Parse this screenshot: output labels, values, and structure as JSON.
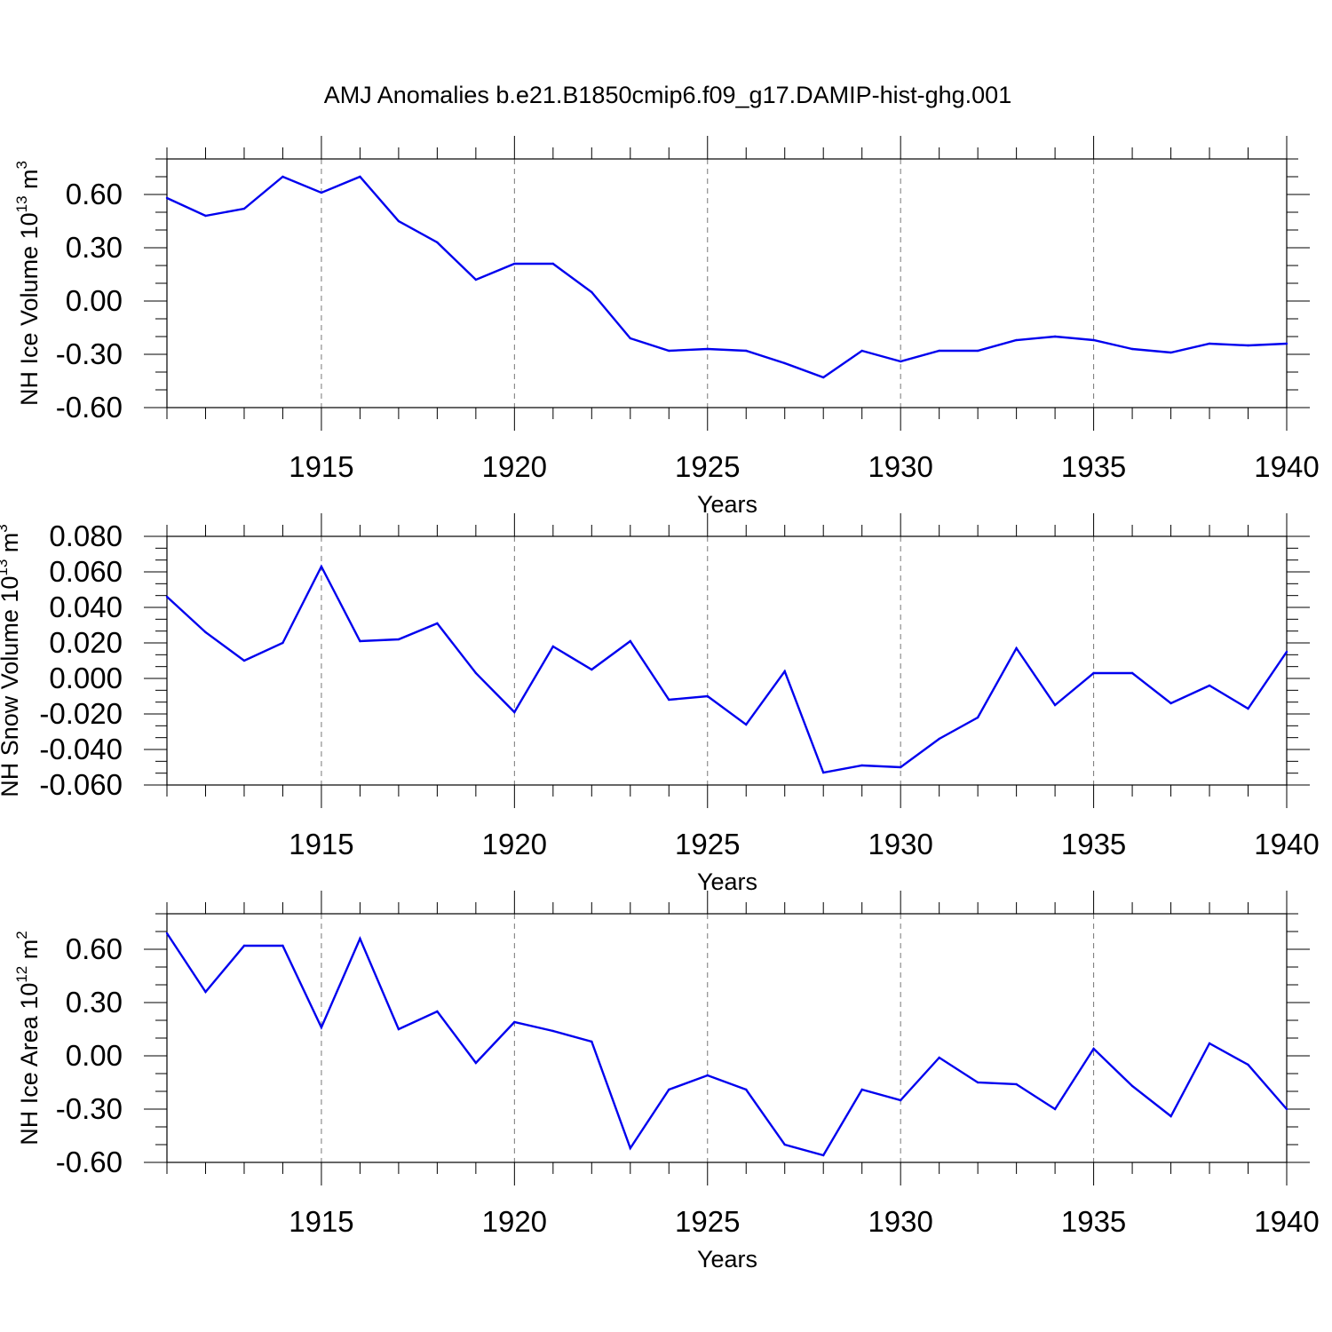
{
  "title": "AMJ Anomalies b.e21.B1850cmip6.f09_g17.DAMIP-hist-ghg.001",
  "line_color": "#0000ee",
  "grid_color": "#777777",
  "chart_data": [
    {
      "type": "line",
      "ylabel": "NH Ice Volume 10",
      "ylabel_sup": "13",
      "ylabel_unit": " m",
      "ylabel_unit_sup": "3",
      "xlabel": "Years",
      "xlim": [
        1911,
        1940
      ],
      "ylim": [
        -0.6,
        0.8
      ],
      "yticks": [
        -0.6,
        -0.3,
        0.0,
        0.3,
        0.6
      ],
      "ytick_labels": [
        "-0.60",
        "-0.30",
        "0.00",
        "0.30",
        "0.60"
      ],
      "xticks": [
        1915,
        1920,
        1925,
        1930,
        1935,
        1940
      ],
      "xtick_labels": [
        "1915",
        "1920",
        "1925",
        "1930",
        "1935",
        "1940"
      ],
      "x": [
        1911,
        1912,
        1913,
        1914,
        1915,
        1916,
        1917,
        1918,
        1919,
        1920,
        1921,
        1922,
        1923,
        1924,
        1925,
        1926,
        1927,
        1928,
        1929,
        1930,
        1931,
        1932,
        1933,
        1934,
        1935,
        1936,
        1937,
        1938,
        1939,
        1940
      ],
      "values": [
        0.58,
        0.48,
        0.52,
        0.7,
        0.61,
        0.7,
        0.45,
        0.33,
        0.12,
        0.21,
        0.21,
        0.05,
        -0.21,
        -0.28,
        -0.27,
        -0.28,
        -0.35,
        -0.43,
        -0.28,
        -0.34,
        -0.28,
        -0.28,
        -0.22,
        -0.2,
        -0.22,
        -0.27,
        -0.29,
        -0.24,
        -0.25,
        -0.24
      ]
    },
    {
      "type": "line",
      "ylabel": "NH Snow Volume 10",
      "ylabel_sup": "13",
      "ylabel_unit": " m",
      "ylabel_unit_sup": "3",
      "xlabel": "Years",
      "xlim": [
        1911,
        1940
      ],
      "ylim": [
        -0.06,
        0.08
      ],
      "yticks": [
        -0.06,
        -0.04,
        -0.02,
        0.0,
        0.02,
        0.04,
        0.06,
        0.08
      ],
      "ytick_labels": [
        "-0.060",
        "-0.040",
        "-0.020",
        "0.000",
        "0.020",
        "0.040",
        "0.060",
        "0.080"
      ],
      "xticks": [
        1915,
        1920,
        1925,
        1930,
        1935,
        1940
      ],
      "xtick_labels": [
        "1915",
        "1920",
        "1925",
        "1930",
        "1935",
        "1940"
      ],
      "x": [
        1911,
        1912,
        1913,
        1914,
        1915,
        1916,
        1917,
        1918,
        1919,
        1920,
        1921,
        1922,
        1923,
        1924,
        1925,
        1926,
        1927,
        1928,
        1929,
        1930,
        1931,
        1932,
        1933,
        1934,
        1935,
        1936,
        1937,
        1938,
        1939,
        1940
      ],
      "values": [
        0.046,
        0.026,
        0.01,
        0.02,
        0.063,
        0.021,
        0.022,
        0.031,
        0.003,
        -0.019,
        0.018,
        0.005,
        0.021,
        -0.012,
        -0.01,
        -0.026,
        0.004,
        -0.053,
        -0.049,
        -0.05,
        -0.034,
        -0.022,
        0.017,
        -0.015,
        0.003,
        0.003,
        -0.014,
        -0.004,
        -0.017,
        0.015
      ]
    },
    {
      "type": "line",
      "ylabel": "NH Ice Area 10",
      "ylabel_sup": "12",
      "ylabel_unit": " m",
      "ylabel_unit_sup": "2",
      "xlabel": "Years",
      "xlim": [
        1911,
        1940
      ],
      "ylim": [
        -0.6,
        0.8
      ],
      "yticks": [
        -0.6,
        -0.3,
        0.0,
        0.3,
        0.6
      ],
      "ytick_labels": [
        "-0.60",
        "-0.30",
        "0.00",
        "0.30",
        "0.60"
      ],
      "xticks": [
        1915,
        1920,
        1925,
        1930,
        1935,
        1940
      ],
      "xtick_labels": [
        "1915",
        "1920",
        "1925",
        "1930",
        "1935",
        "1940"
      ],
      "x": [
        1911,
        1912,
        1913,
        1914,
        1915,
        1916,
        1917,
        1918,
        1919,
        1920,
        1921,
        1922,
        1923,
        1924,
        1925,
        1926,
        1927,
        1928,
        1929,
        1930,
        1931,
        1932,
        1933,
        1934,
        1935,
        1936,
        1937,
        1938,
        1939,
        1940
      ],
      "values": [
        0.69,
        0.36,
        0.62,
        0.62,
        0.16,
        0.66,
        0.15,
        0.25,
        -0.04,
        0.19,
        0.14,
        0.08,
        -0.52,
        -0.19,
        -0.11,
        -0.19,
        -0.5,
        -0.56,
        -0.19,
        -0.25,
        -0.01,
        -0.15,
        -0.16,
        -0.3,
        0.04,
        -0.17,
        -0.34,
        0.07,
        -0.05,
        -0.3
      ]
    }
  ]
}
